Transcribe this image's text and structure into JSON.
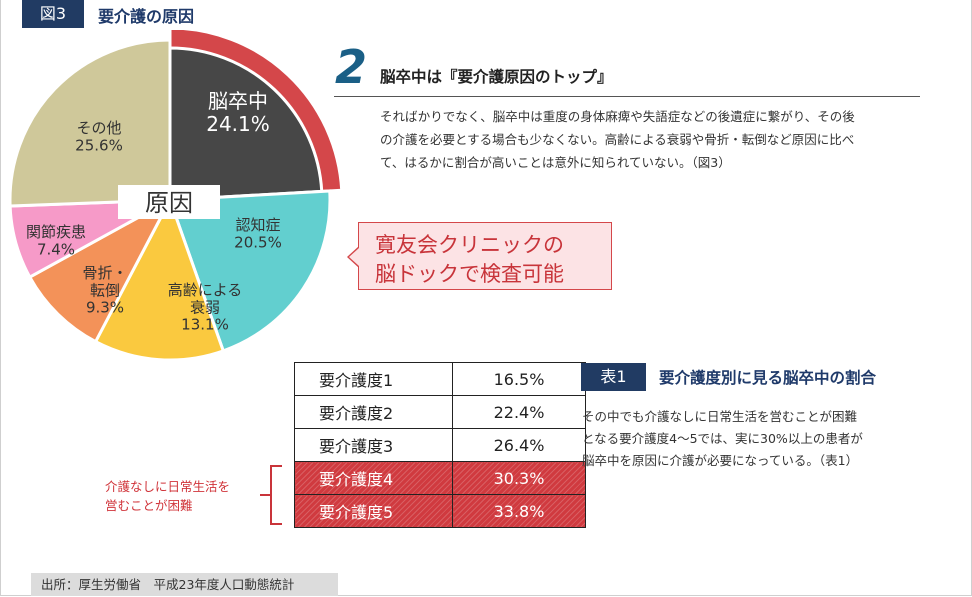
{
  "figure": {
    "badge": "図3",
    "title": "要介護の原因"
  },
  "chart_data": {
    "type": "pie",
    "center_label": "原因",
    "slices": [
      {
        "name": "脳卒中",
        "value": 24.1,
        "label": "24.1%",
        "color": "#474747",
        "highlight": true
      },
      {
        "name": "認知症",
        "value": 20.5,
        "label": "20.5%",
        "color": "#62cfcf"
      },
      {
        "name": "高齢による衰弱",
        "value": 13.1,
        "label": "13.1%",
        "color": "#fac93f"
      },
      {
        "name": "骨折・転倒",
        "value": 9.3,
        "label": "9.3%",
        "color": "#f39259"
      },
      {
        "name": "関節疾患",
        "value": 7.4,
        "label": "7.4%",
        "color": "#f69ac8"
      },
      {
        "name": "その他",
        "value": 25.6,
        "label": "25.6%",
        "color": "#cfc89a"
      }
    ]
  },
  "section": {
    "number": "2",
    "heading": "脳卒中は『要介護原因のトップ』",
    "lines": [
      "そればかりでなく、脳卒中は重度の身体麻痺や失語症などの後遺症に繋がり、その後",
      "の介護を必要とする場合も少なくない。高齢による衰弱や骨折・転倒など原因に比べ",
      "て、はるかに割合が高いことは意外に知られていない。（図3）"
    ]
  },
  "callout": {
    "line1": "寛友会クリニックの",
    "line2": "脳ドックで検査可能"
  },
  "table": {
    "rows": [
      {
        "level": "要介護度1",
        "percent": "16.5%"
      },
      {
        "level": "要介護度2",
        "percent": "22.4%"
      },
      {
        "level": "要介護度3",
        "percent": "26.4%"
      },
      {
        "level": "要介護度4",
        "percent": "30.3%"
      },
      {
        "level": "要介護度5",
        "percent": "33.8%"
      }
    ],
    "bracket_note": {
      "line1": "介護なしに日常生活を",
      "line2": "営むことが困難"
    }
  },
  "table_section": {
    "badge": "表1",
    "title": "要介護度別に見る脳卒中の割合",
    "lines": [
      "その中でも介護なしに日常生活を営むことが困難",
      "となる要介護度4～5では、実に30%以上の患者が",
      "脳卒中を原因に介護が必要になっている。（表1）"
    ]
  },
  "source": "出所：厚生労働省　平成23年度人口動態統計"
}
